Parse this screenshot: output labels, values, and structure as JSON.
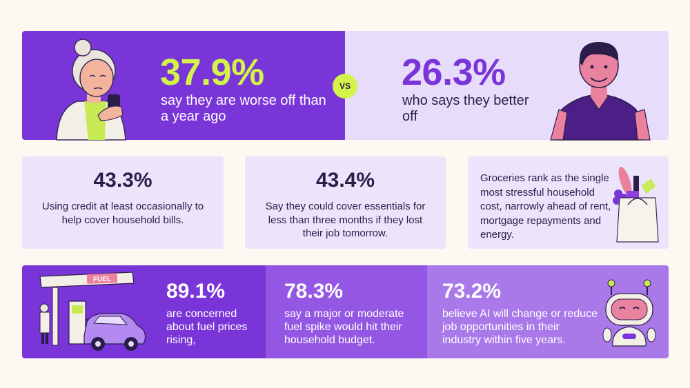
{
  "comparison": {
    "worse": {
      "stat": "37.9%",
      "caption": "say they are worse off than a year ago"
    },
    "vs_label": "VS",
    "better": {
      "stat": "26.3%",
      "caption": "who says they better off"
    }
  },
  "cards": [
    {
      "stat": "43.3%",
      "caption": "Using credit at least occasionally to help cover household bills."
    },
    {
      "stat": "43.4%",
      "caption": "Say they could cover essentials for less than three months if they lost their job tomorrow."
    },
    {
      "caption": "Groceries rank as the single most stressful household cost, narrowly ahead of rent, mortgage repayments and energy."
    }
  ],
  "bottom": [
    {
      "stat": "89.1%",
      "caption": "are concerned about fuel prices rising,"
    },
    {
      "stat": "78.3%",
      "caption": "say a major or moderate fuel spike would hit their household budget."
    },
    {
      "stat": "73.2%",
      "caption": "believe AI will change or reduce job opportunities in their industry within five years."
    }
  ],
  "fuel_sign": "FUEL",
  "icons": [
    "elderly-woman-phone-illustration",
    "smiling-man-illustration",
    "grocery-bag-icon",
    "fuel-station-icon",
    "robot-icon"
  ],
  "colors": {
    "primary": "#7a35d9",
    "accent": "#d3f24a",
    "light": "#e8dcfb",
    "text": "#2b1d4a"
  }
}
